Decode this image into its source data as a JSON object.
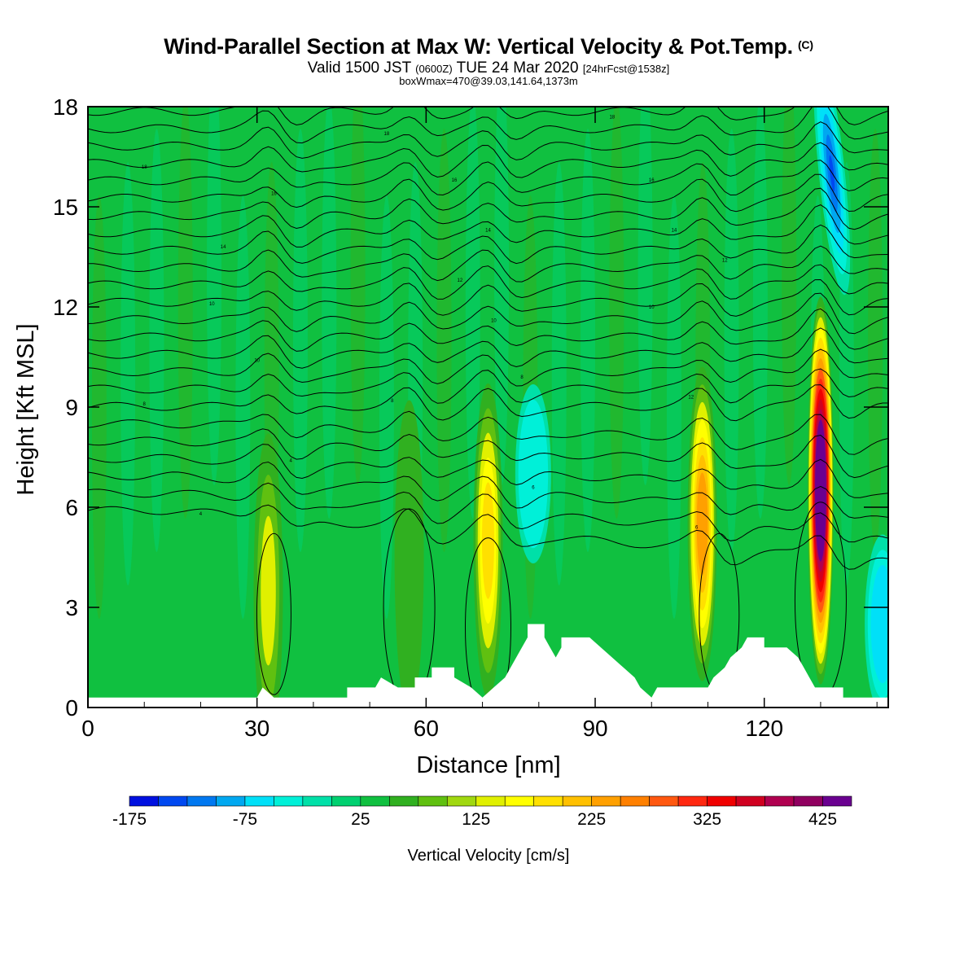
{
  "header": {
    "title": "Wind-Parallel Section at Max W: Vertical Velocity & Pot.Temp.",
    "copyright": "(C)",
    "valid_prefix": "Valid 1500 JST",
    "valid_utc": "(0600Z)",
    "valid_date": "TUE 24 Mar 2020",
    "forecast": "[24hrFcst@1538z]",
    "box_info": "boxWmax=470@39.03,141.64,1373m"
  },
  "chart_data": {
    "type": "heatmap",
    "xlabel": "Distance [nm]",
    "ylabel": "Height [Kft MSL]",
    "xlim": [
      0,
      142
    ],
    "ylim": [
      0,
      18
    ],
    "x_ticks": [
      "0",
      "30",
      "60",
      "90",
      "120"
    ],
    "x_tick_values": [
      0,
      30,
      60,
      90,
      120
    ],
    "y_ticks": [
      "0",
      "3",
      "6",
      "9",
      "12",
      "15",
      "18"
    ],
    "y_tick_values": [
      0,
      3,
      6,
      9,
      12,
      15,
      18
    ],
    "background_value": 0,
    "updrafts": [
      {
        "x": 32,
        "y": 3.5,
        "peak": 110
      },
      {
        "x": 57,
        "y": 4.5,
        "peak": 60
      },
      {
        "x": 71,
        "y": 5.0,
        "peak": 175
      },
      {
        "x": 109,
        "y": 5.5,
        "peak": 220
      },
      {
        "x": 130,
        "y": 6.5,
        "peak": 470
      }
    ],
    "downdrafts": [
      {
        "x": 79,
        "y": 7,
        "peak": -60
      },
      {
        "x": 132,
        "y": 16,
        "peak": -175
      },
      {
        "x": 141,
        "y": 2.5,
        "peak": -90
      }
    ],
    "terrain": [
      [
        0,
        0.3
      ],
      [
        30,
        0.3
      ],
      [
        31,
        0.6
      ],
      [
        33,
        0.3
      ],
      [
        46,
        0.3
      ],
      [
        46,
        0.6
      ],
      [
        51,
        0.6
      ],
      [
        52,
        0.9
      ],
      [
        55,
        0.6
      ],
      [
        58,
        0.6
      ],
      [
        58,
        0.9
      ],
      [
        61,
        0.9
      ],
      [
        61,
        1.2
      ],
      [
        65,
        1.2
      ],
      [
        65,
        0.9
      ],
      [
        68,
        0.6
      ],
      [
        70,
        0.3
      ],
      [
        72,
        0.6
      ],
      [
        74,
        0.9
      ],
      [
        75,
        1.2
      ],
      [
        76,
        1.5
      ],
      [
        77,
        1.8
      ],
      [
        78,
        2.1
      ],
      [
        78,
        2.5
      ],
      [
        81,
        2.5
      ],
      [
        81,
        2.1
      ],
      [
        82,
        1.8
      ],
      [
        83,
        1.5
      ],
      [
        84,
        1.8
      ],
      [
        84,
        2.1
      ],
      [
        89,
        2.1
      ],
      [
        91,
        1.8
      ],
      [
        93,
        1.5
      ],
      [
        95,
        1.2
      ],
      [
        97,
        0.9
      ],
      [
        98,
        0.6
      ],
      [
        100,
        0.3
      ],
      [
        101,
        0.6
      ],
      [
        110,
        0.6
      ],
      [
        111,
        0.9
      ],
      [
        113,
        1.2
      ],
      [
        114,
        1.5
      ],
      [
        116,
        1.8
      ],
      [
        117,
        2.1
      ],
      [
        120,
        2.1
      ],
      [
        120,
        1.8
      ],
      [
        124,
        1.8
      ],
      [
        126,
        1.5
      ],
      [
        127,
        1.2
      ],
      [
        128,
        0.9
      ],
      [
        129,
        0.6
      ],
      [
        134,
        0.6
      ],
      [
        134,
        0.3
      ],
      [
        142,
        0.3
      ]
    ],
    "theta_line_labels": [
      {
        "x": 10,
        "y": 16.2,
        "text": "18"
      },
      {
        "x": 53,
        "y": 17.2,
        "text": "18"
      },
      {
        "x": 93,
        "y": 17.7,
        "text": "18"
      },
      {
        "x": 33,
        "y": 15.4,
        "text": "16"
      },
      {
        "x": 65,
        "y": 15.8,
        "text": "16"
      },
      {
        "x": 100,
        "y": 15.8,
        "text": "16"
      },
      {
        "x": 24,
        "y": 13.8,
        "text": "14"
      },
      {
        "x": 71,
        "y": 14.3,
        "text": "14"
      },
      {
        "x": 104,
        "y": 14.3,
        "text": "14"
      },
      {
        "x": 113,
        "y": 13.4,
        "text": "12"
      },
      {
        "x": 66,
        "y": 12.8,
        "text": "12"
      },
      {
        "x": 22,
        "y": 12.1,
        "text": "10"
      },
      {
        "x": 72,
        "y": 11.6,
        "text": "10"
      },
      {
        "x": 100,
        "y": 12.0,
        "text": "10"
      },
      {
        "x": 30,
        "y": 10.4,
        "text": "10"
      },
      {
        "x": 77,
        "y": 9.9,
        "text": "8"
      },
      {
        "x": 54,
        "y": 9.2,
        "text": "8"
      },
      {
        "x": 107,
        "y": 9.3,
        "text": "12"
      },
      {
        "x": 10,
        "y": 9.1,
        "text": "8"
      },
      {
        "x": 36,
        "y": 7.4,
        "text": "4"
      },
      {
        "x": 79,
        "y": 6.6,
        "text": "6"
      },
      {
        "x": 20,
        "y": 5.8,
        "text": "4"
      },
      {
        "x": 108,
        "y": 5.4,
        "text": "6"
      }
    ],
    "colorbar": {
      "label": "Vertical Velocity [cm/s]",
      "ticks": [
        "-175",
        "-75",
        "25",
        "125",
        "225",
        "325",
        "425"
      ],
      "colors": [
        "#0010e0",
        "#0048f0",
        "#0078f0",
        "#00a8f0",
        "#00e0f8",
        "#00f0d8",
        "#00e0a8",
        "#00d070",
        "#10c040",
        "#30b020",
        "#60c010",
        "#a0d810",
        "#e0f000",
        "#ffff00",
        "#ffe000",
        "#ffc000",
        "#ffa000",
        "#ff8000",
        "#ff5810",
        "#ff2810",
        "#f00000",
        "#d00020",
        "#b00050",
        "#900060",
        "#6a0090"
      ]
    }
  }
}
